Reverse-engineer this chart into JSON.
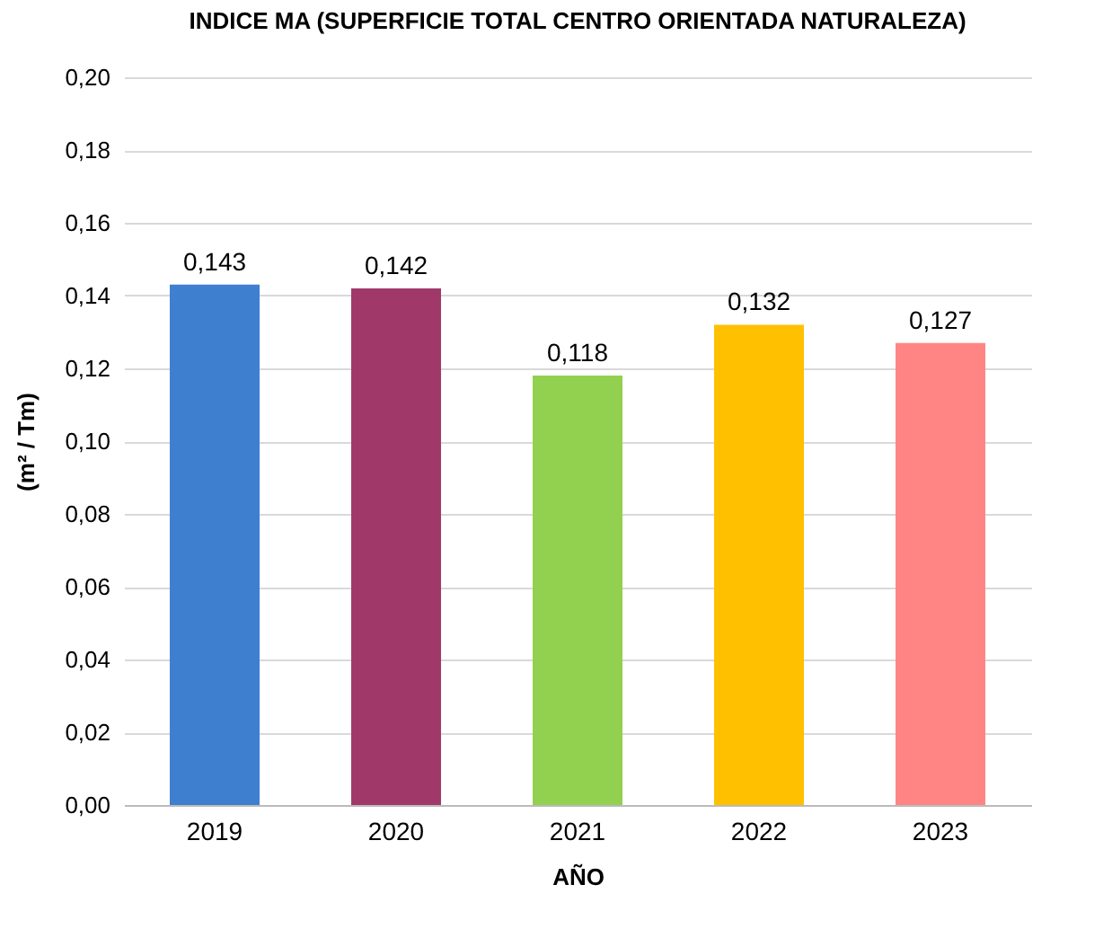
{
  "chart_data": {
    "type": "bar",
    "title": "INDICE MA (SUPERFICIE TOTAL CENTRO ORIENTADA NATURALEZA)",
    "xlabel": "AÑO",
    "ylabel": "(m² / Tm)",
    "categories": [
      "2019",
      "2020",
      "2021",
      "2022",
      "2023"
    ],
    "values": [
      0.143,
      0.142,
      0.118,
      0.132,
      0.127
    ],
    "colors": [
      "#3f7fd0",
      "#a0396a",
      "#92d050",
      "#ffc000",
      "#ff8585"
    ],
    "value_labels": [
      "0,143",
      "0,142",
      "0,118",
      "0,132",
      "0,127"
    ],
    "ylim": [
      0,
      0.2
    ],
    "yticks": [
      {
        "value": 0,
        "label": "0,00"
      },
      {
        "value": 0.02,
        "label": "0,02"
      },
      {
        "value": 0.04,
        "label": "0,04"
      },
      {
        "value": 0.06,
        "label": "0,06"
      },
      {
        "value": 0.08,
        "label": "0,08"
      },
      {
        "value": 0.1,
        "label": "0,10"
      },
      {
        "value": 0.12,
        "label": "0,12"
      },
      {
        "value": 0.14,
        "label": "0,14"
      },
      {
        "value": 0.16,
        "label": "0,16"
      },
      {
        "value": 0.18,
        "label": "0,18"
      },
      {
        "value": 0.2,
        "label": "0,20"
      }
    ],
    "grid": "y",
    "legend": false
  }
}
